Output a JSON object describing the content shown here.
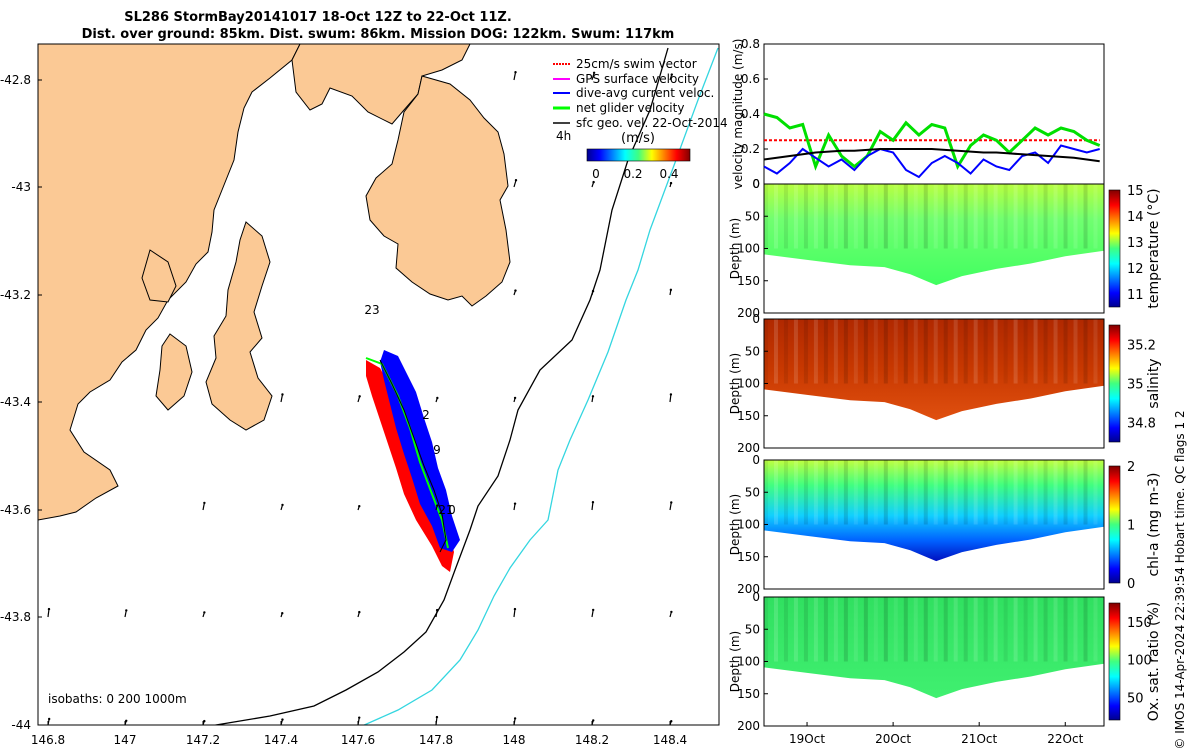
{
  "title": {
    "line1": "SL286 StormBay20141017 18-Oct 12Z to 22-Oct 11Z.",
    "line2": "Dist. over ground: 85km. Dist. swum: 86km. Mission DOG: 122km. Swum: 117km"
  },
  "map": {
    "lat_ticks": [
      "-42.8",
      "-43",
      "-43.2",
      "-43.4",
      "-43.6",
      "-43.8",
      "-44"
    ],
    "lon_ticks": [
      "146.8",
      "147",
      "147.2",
      "147.4",
      "147.6",
      "147.8",
      "148",
      "148.2",
      "148.4"
    ],
    "legend": [
      "25cm/s swim vector",
      "GPS surface velocity",
      "dive-avg current veloc.",
      "net glider velocity",
      "sfc geo. vel. 22-Oct-2014"
    ],
    "legend_time": "4h",
    "colorbar_unit": "(m/s)",
    "colorbar_ticks": [
      "0",
      "0.2",
      "0.4"
    ],
    "isobaths_label": "isobaths: 0   200  1000m",
    "day_labels": [
      "23",
      "2",
      "9",
      "21",
      "0"
    ],
    "colors": {
      "land": "#FBC995",
      "track_red": "#ff0000",
      "track_blue": "#0000ff",
      "track_green": "#00ff00",
      "isobath_200": "#000000",
      "isobath_1000": "#34d6e0"
    }
  },
  "chart_data": [
    {
      "type": "line",
      "name": "velocity",
      "ylabel": "velocity magnitude (m/s)",
      "ylim": [
        0,
        0.8
      ],
      "yticks": [
        "0",
        "0.2",
        "0.4",
        "0.6",
        "0.8"
      ],
      "x": [
        0,
        0.15,
        0.3,
        0.45,
        0.6,
        0.75,
        0.9,
        1.05,
        1.2,
        1.35,
        1.5,
        1.65,
        1.8,
        1.95,
        2.1,
        2.25,
        2.4,
        2.55,
        2.7,
        2.85,
        3.0,
        3.15,
        3.3,
        3.45,
        3.6,
        3.75,
        3.9
      ],
      "series": [
        {
          "name": "25cm/s swim vector",
          "color": "#ff0000",
          "values": [
            0.25,
            0.25,
            0.25,
            0.25,
            0.25,
            0.25,
            0.25,
            0.25,
            0.25,
            0.25,
            0.25,
            0.25,
            0.25,
            0.25,
            0.25,
            0.25,
            0.25,
            0.25,
            0.25,
            0.25,
            0.25,
            0.25,
            0.25,
            0.25,
            0.25,
            0.25,
            0.25
          ]
        },
        {
          "name": "net glider velocity",
          "color": "#00e000",
          "values": [
            0.4,
            0.38,
            0.32,
            0.34,
            0.1,
            0.28,
            0.16,
            0.1,
            0.16,
            0.3,
            0.25,
            0.35,
            0.28,
            0.34,
            0.32,
            0.1,
            0.22,
            0.28,
            0.25,
            0.18,
            0.25,
            0.32,
            0.28,
            0.32,
            0.3,
            0.25,
            0.22
          ]
        },
        {
          "name": "dive-avg current veloc.",
          "color": "#0000ff",
          "values": [
            0.1,
            0.06,
            0.12,
            0.2,
            0.15,
            0.1,
            0.14,
            0.08,
            0.16,
            0.2,
            0.18,
            0.08,
            0.04,
            0.12,
            0.16,
            0.12,
            0.06,
            0.14,
            0.1,
            0.08,
            0.16,
            0.18,
            0.12,
            0.22,
            0.2,
            0.18,
            0.2
          ]
        },
        {
          "name": "sfc geo. vel. 22-Oct-2014",
          "color": "#000000",
          "values": [
            0.14,
            0.15,
            0.16,
            0.17,
            0.18,
            0.185,
            0.19,
            0.19,
            0.195,
            0.2,
            0.2,
            0.2,
            0.2,
            0.2,
            0.195,
            0.19,
            0.185,
            0.18,
            0.18,
            0.175,
            0.17,
            0.165,
            0.16,
            0.155,
            0.15,
            0.14,
            0.13
          ]
        }
      ]
    },
    {
      "type": "heatmap",
      "name": "temperature",
      "ylabel": "Depth (m)",
      "cbar_label": "temperature (°C)",
      "ylim": [
        200,
        0
      ],
      "yticks": [
        "0",
        "50",
        "100",
        "150",
        "200"
      ],
      "cbar_ticks": [
        "11",
        "12",
        "13",
        "14",
        "15"
      ],
      "cbar_range": [
        10.5,
        15
      ]
    },
    {
      "type": "heatmap",
      "name": "salinity",
      "ylabel": "Depth (m)",
      "cbar_label": "salinity",
      "ylim": [
        200,
        0
      ],
      "yticks": [
        "0",
        "50",
        "100",
        "150",
        "200"
      ],
      "cbar_ticks": [
        "34.8",
        "35",
        "35.2"
      ],
      "cbar_range": [
        34.7,
        35.3
      ]
    },
    {
      "type": "heatmap",
      "name": "chl-a",
      "ylabel": "Depth (m)",
      "cbar_label": "chl-a (mg m-3)",
      "ylim": [
        200,
        0
      ],
      "yticks": [
        "0",
        "50",
        "100",
        "150",
        "200"
      ],
      "cbar_ticks": [
        "0",
        "1",
        "2"
      ],
      "cbar_range": [
        0,
        2
      ]
    },
    {
      "type": "heatmap",
      "name": "oxygen",
      "ylabel": "Depth (m)",
      "cbar_label": "Ox. sat. ratio (%)",
      "ylim": [
        200,
        0
      ],
      "yticks": [
        "0",
        "50",
        "100",
        "150",
        "200"
      ],
      "cbar_ticks": [
        "50",
        "100",
        "150"
      ],
      "cbar_range": [
        20,
        175
      ]
    }
  ],
  "time_axis": {
    "labels": [
      "19Oct",
      "20Oct",
      "21Oct",
      "22Oct"
    ]
  },
  "side_note": "© IMOS 14-Apr-2024 22:39:54 Hobart time. QC flags 1  2"
}
